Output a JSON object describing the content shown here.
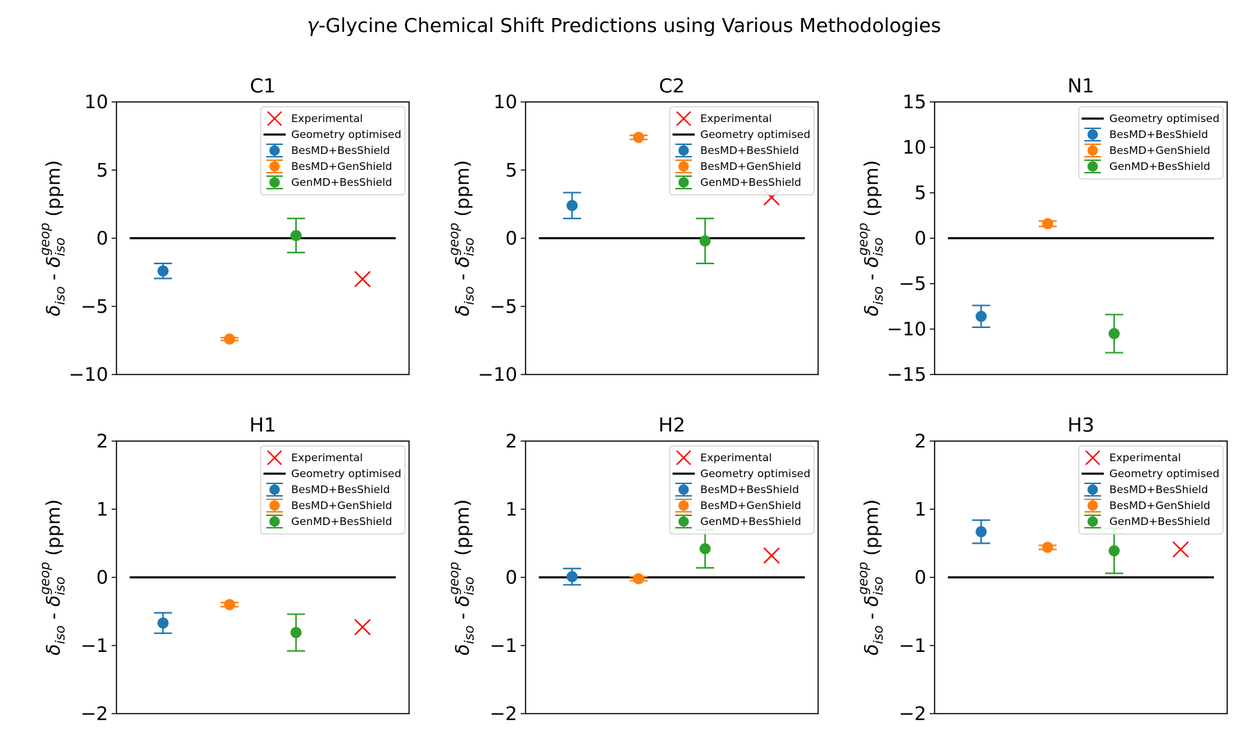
{
  "suptitle_prefix": "γ",
  "suptitle_rest": "-Glycine Chemical Shift Predictions using Various Methodologies",
  "ylabel": {
    "delta": "δ",
    "iso": "iso",
    "sep": " - ",
    "geop": "geop",
    "unit": "(ppm)"
  },
  "legend_labels": {
    "experimental": "Experimental",
    "geometry": "Geometry optimised",
    "bmd_bsh": "BesMD+BesShield",
    "bmd_gsh": "BesMD+GenShield",
    "gmd_bsh": "GenMD+BesShield"
  },
  "colors": {
    "bmd_bsh": "#1f77b4",
    "bmd_gsh": "#ff7f0e",
    "gmd_bsh": "#2ca02c",
    "experimental": "#ff0000",
    "geometry": "#000000"
  },
  "chart_data": [
    {
      "type": "scatter",
      "title": "C1",
      "ylim": [
        -10,
        10
      ],
      "yticks": [
        10,
        5,
        0,
        -5,
        -10
      ],
      "legend_position": "top-right",
      "legend": [
        "experimental",
        "geometry",
        "bmd_bsh",
        "bmd_gsh",
        "gmd_bsh"
      ],
      "geometry_optimised": 0,
      "series": [
        {
          "key": "bmd_bsh",
          "x": 1,
          "y": -2.4,
          "yerr": 0.55
        },
        {
          "key": "bmd_gsh",
          "x": 2,
          "y": -7.4,
          "yerr": 0.1
        },
        {
          "key": "gmd_bsh",
          "x": 3,
          "y": 0.2,
          "yerr": 1.25
        }
      ],
      "experimental": {
        "x": 4,
        "y": -3.0
      }
    },
    {
      "type": "scatter",
      "title": "C2",
      "ylim": [
        -10,
        10
      ],
      "yticks": [
        10,
        5,
        0,
        -5,
        -10
      ],
      "legend_position": "top-right",
      "legend": [
        "experimental",
        "geometry",
        "bmd_bsh",
        "bmd_gsh",
        "gmd_bsh"
      ],
      "geometry_optimised": 0,
      "series": [
        {
          "key": "bmd_bsh",
          "x": 1,
          "y": 2.4,
          "yerr": 0.95
        },
        {
          "key": "bmd_gsh",
          "x": 2,
          "y": 7.4,
          "yerr": 0.15
        },
        {
          "key": "gmd_bsh",
          "x": 3,
          "y": -0.2,
          "yerr": 1.65
        }
      ],
      "experimental": {
        "x": 4,
        "y": 3.0
      }
    },
    {
      "type": "scatter",
      "title": "N1",
      "ylim": [
        -15,
        15
      ],
      "yticks": [
        15,
        10,
        5,
        0,
        -5,
        -10,
        -15
      ],
      "legend_position": "top-right",
      "legend": [
        "geometry",
        "bmd_bsh",
        "bmd_gsh",
        "gmd_bsh"
      ],
      "geometry_optimised": 0,
      "series": [
        {
          "key": "bmd_bsh",
          "x": 1,
          "y": -8.6,
          "yerr": 1.2
        },
        {
          "key": "bmd_gsh",
          "x": 2,
          "y": 1.6,
          "yerr": 0.3
        },
        {
          "key": "gmd_bsh",
          "x": 3,
          "y": -10.5,
          "yerr": 2.1
        }
      ],
      "experimental": null
    },
    {
      "type": "scatter",
      "title": "H1",
      "ylim": [
        -2,
        2
      ],
      "yticks": [
        2,
        1,
        0,
        -1,
        -2
      ],
      "legend_position": "top-right",
      "legend": [
        "experimental",
        "geometry",
        "bmd_bsh",
        "bmd_gsh",
        "gmd_bsh"
      ],
      "geometry_optimised": 0,
      "series": [
        {
          "key": "bmd_bsh",
          "x": 1,
          "y": -0.67,
          "yerr": 0.15
        },
        {
          "key": "bmd_gsh",
          "x": 2,
          "y": -0.4,
          "yerr": 0.03
        },
        {
          "key": "gmd_bsh",
          "x": 3,
          "y": -0.81,
          "yerr": 0.27
        }
      ],
      "experimental": {
        "x": 4,
        "y": -0.73
      }
    },
    {
      "type": "scatter",
      "title": "H2",
      "ylim": [
        -2,
        2
      ],
      "yticks": [
        2,
        1,
        0,
        -1,
        -2
      ],
      "legend_position": "top-right",
      "legend": [
        "experimental",
        "geometry",
        "bmd_bsh",
        "bmd_gsh",
        "gmd_bsh"
      ],
      "geometry_optimised": 0,
      "series": [
        {
          "key": "bmd_bsh",
          "x": 1,
          "y": 0.01,
          "yerr": 0.12
        },
        {
          "key": "bmd_gsh",
          "x": 2,
          "y": -0.02,
          "yerr": 0.03
        },
        {
          "key": "gmd_bsh",
          "x": 3,
          "y": 0.42,
          "yerr": 0.28
        }
      ],
      "experimental": {
        "x": 4,
        "y": 0.32
      }
    },
    {
      "type": "scatter",
      "title": "H3",
      "ylim": [
        -2,
        2
      ],
      "yticks": [
        2,
        1,
        0,
        -1,
        -2
      ],
      "legend_position": "top-right",
      "legend": [
        "experimental",
        "geometry",
        "bmd_bsh",
        "bmd_gsh",
        "gmd_bsh"
      ],
      "geometry_optimised": 0,
      "series": [
        {
          "key": "bmd_bsh",
          "x": 1,
          "y": 0.67,
          "yerr": 0.17
        },
        {
          "key": "bmd_gsh",
          "x": 2,
          "y": 0.44,
          "yerr": 0.03
        },
        {
          "key": "gmd_bsh",
          "x": 3,
          "y": 0.39,
          "yerr": 0.33
        }
      ],
      "experimental": {
        "x": 4,
        "y": 0.41
      }
    }
  ]
}
